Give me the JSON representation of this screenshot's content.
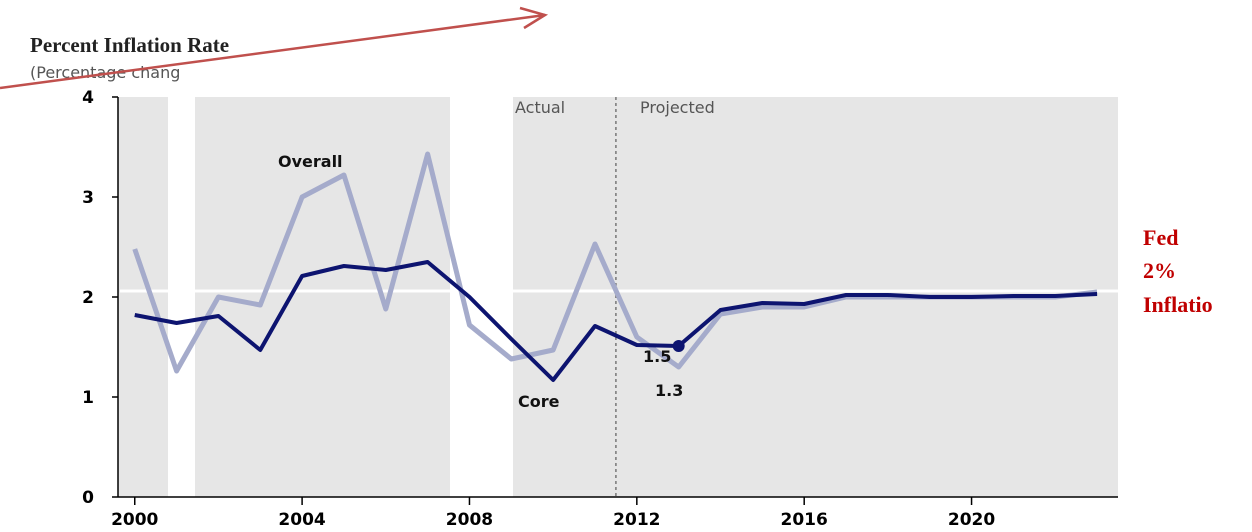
{
  "chart_data": {
    "type": "line",
    "title": "Percent Inflation Rate",
    "subtitle": "(Percentage chang",
    "x": [
      2000,
      2001,
      2002,
      2003,
      2004,
      2005,
      2006,
      2007,
      2008,
      2009,
      2010,
      2011,
      2012,
      2013,
      2014,
      2015,
      2016,
      2017,
      2018,
      2019,
      2020,
      2021,
      2022,
      2023
    ],
    "series": [
      {
        "name": "Overall",
        "color": "#a5abcb",
        "values": [
          2.48,
          1.26,
          2.0,
          1.92,
          3.0,
          3.22,
          1.88,
          3.43,
          1.72,
          1.38,
          1.47,
          2.53,
          1.6,
          1.3,
          1.83,
          1.9,
          1.9,
          2.0,
          2.0,
          2.0,
          2.0,
          2.0,
          2.0,
          2.05
        ]
      },
      {
        "name": "Core",
        "color": "#0d1470",
        "values": [
          1.82,
          1.74,
          1.81,
          1.47,
          2.21,
          2.31,
          2.27,
          2.35,
          2.0,
          1.58,
          1.17,
          1.71,
          1.52,
          1.51,
          1.87,
          1.94,
          1.93,
          2.02,
          2.02,
          2.0,
          2.0,
          2.01,
          2.01,
          2.03
        ]
      }
    ],
    "xlim": [
      1999.6,
      2023.5
    ],
    "xticks": [
      2000,
      2004,
      2008,
      2012,
      2016,
      2020
    ],
    "ylim": [
      0,
      4
    ],
    "yticks": [
      0,
      1,
      2,
      3,
      4
    ],
    "divider_x": 2011.5,
    "divider_labels": [
      "Actual",
      "Projected"
    ],
    "point_labels": [
      "1.5",
      "1.3"
    ],
    "reference_line": 2.06,
    "reference_label": [
      "Fed",
      "2%",
      "Inflatio"
    ]
  }
}
